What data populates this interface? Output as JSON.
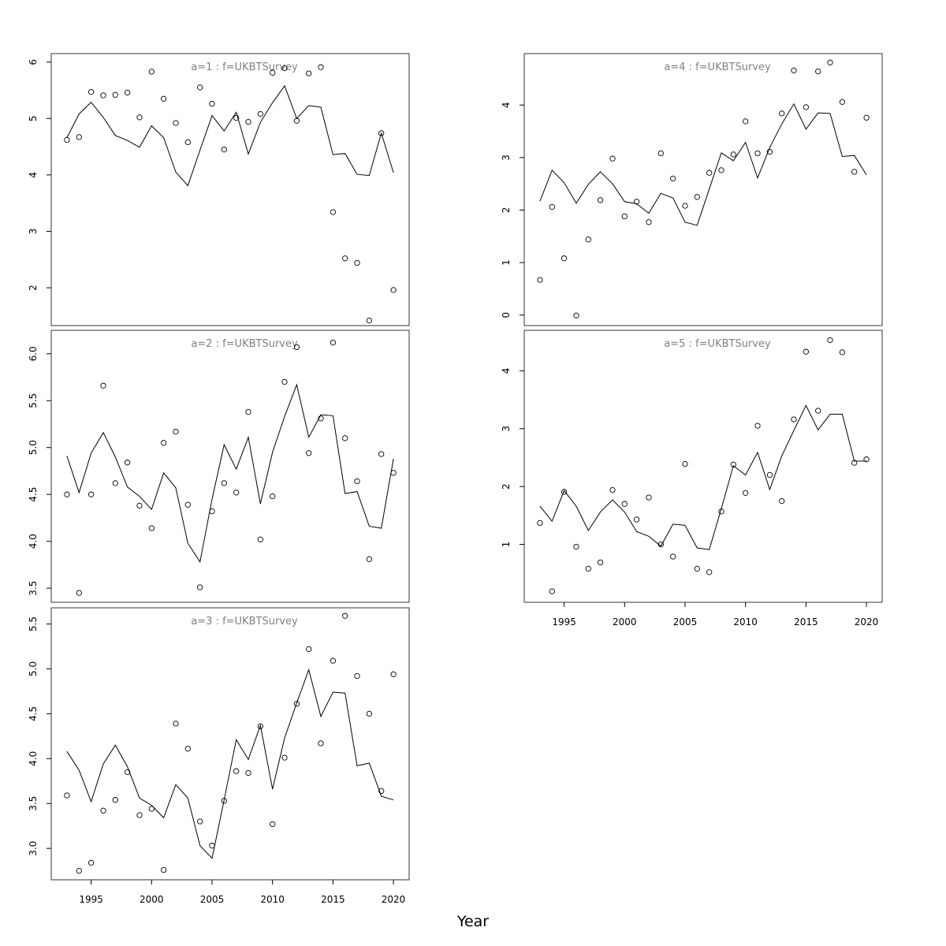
{
  "chart_data": {
    "type": "scatter",
    "xlabel": "Year",
    "x_ticks": [
      1995,
      2000,
      2005,
      2010,
      2015,
      2020
    ],
    "xlim": [
      1991.7,
      2021.3
    ],
    "years": [
      1993,
      1994,
      1995,
      1996,
      1997,
      1998,
      1999,
      2000,
      2001,
      2002,
      2003,
      2004,
      2005,
      2006,
      2007,
      2008,
      2009,
      2010,
      2011,
      2012,
      2013,
      2014,
      2015,
      2016,
      2017,
      2018,
      2019,
      2020
    ],
    "panels": [
      {
        "title": "a=1  :  f=UKBTSurvey",
        "ylim": [
          1.33,
          6.15
        ],
        "y_ticks": [
          2,
          3,
          4,
          5,
          6
        ],
        "y_tick_labels": [
          "2",
          "3",
          "4",
          "5",
          "6"
        ],
        "observed": [
          4.62,
          4.67,
          5.47,
          5.41,
          5.42,
          5.46,
          5.02,
          5.83,
          5.35,
          4.92,
          4.58,
          5.55,
          5.26,
          4.45,
          5.01,
          4.94,
          5.08,
          5.81,
          5.89,
          4.96,
          5.8,
          5.91,
          3.34,
          2.52,
          2.44,
          1.42,
          4.74,
          1.96
        ],
        "fitted": [
          4.66,
          5.08,
          5.29,
          5.02,
          4.7,
          4.61,
          4.49,
          4.87,
          4.66,
          4.05,
          3.81,
          4.44,
          5.05,
          4.78,
          5.11,
          4.37,
          4.93,
          5.28,
          5.58,
          5.0,
          5.23,
          5.2,
          4.36,
          4.38,
          4.01,
          3.99,
          4.74,
          4.04
        ]
      },
      {
        "title": "a=2  :  f=UKBTSurvey",
        "ylim": [
          3.35,
          6.25
        ],
        "y_ticks": [
          3.5,
          4.0,
          4.5,
          5.0,
          5.5,
          6.0
        ],
        "y_tick_labels": [
          "3.5",
          "4.0",
          "4.5",
          "5.0",
          "5.5",
          "6.0"
        ],
        "observed": [
          4.5,
          3.45,
          4.5,
          5.66,
          4.62,
          4.84,
          4.38,
          4.14,
          5.05,
          5.17,
          4.39,
          3.51,
          4.32,
          4.62,
          4.52,
          5.38,
          4.02,
          4.48,
          5.7,
          6.07,
          4.94,
          5.31,
          6.12,
          5.1,
          4.64,
          3.81,
          4.93,
          4.73
        ],
        "fitted": [
          4.91,
          4.52,
          4.94,
          5.16,
          4.9,
          4.58,
          4.48,
          4.34,
          4.73,
          4.57,
          3.98,
          3.78,
          4.45,
          5.03,
          4.77,
          5.11,
          4.4,
          4.95,
          5.33,
          5.67,
          5.11,
          5.35,
          5.34,
          4.51,
          4.53,
          4.16,
          4.14,
          4.88
        ]
      },
      {
        "title": "a=3  :  f=UKBTSurvey",
        "ylim": [
          2.65,
          5.68
        ],
        "y_ticks": [
          3.0,
          3.5,
          4.0,
          4.5,
          5.0,
          5.5
        ],
        "y_tick_labels": [
          "3.0",
          "3.5",
          "4.0",
          "4.5",
          "5.0",
          "5.5"
        ],
        "observed": [
          3.59,
          2.75,
          2.84,
          3.42,
          3.54,
          3.85,
          3.37,
          3.44,
          2.76,
          4.39,
          4.11,
          3.3,
          3.03,
          3.53,
          3.86,
          3.84,
          4.36,
          3.27,
          4.01,
          4.61,
          5.22,
          4.17,
          5.09,
          5.59,
          4.92,
          4.5,
          3.64,
          4.94
        ],
        "fitted": [
          4.08,
          3.87,
          3.52,
          3.94,
          4.15,
          3.91,
          3.56,
          3.48,
          3.34,
          3.71,
          3.56,
          3.03,
          2.89,
          3.54,
          4.21,
          3.99,
          4.37,
          3.66,
          4.23,
          4.62,
          4.99,
          4.47,
          4.74,
          4.73,
          3.92,
          3.95,
          3.58,
          3.54
        ]
      },
      {
        "title": "a=4  :  f=UKBTSurvey",
        "ylim": [
          -0.2,
          4.98
        ],
        "y_ticks": [
          0,
          1,
          2,
          3,
          4
        ],
        "y_tick_labels": [
          "0",
          "1",
          "2",
          "3",
          "4"
        ],
        "observed": [
          0.67,
          2.06,
          1.08,
          -0.01,
          1.44,
          2.19,
          2.98,
          1.88,
          2.16,
          1.77,
          3.08,
          2.6,
          2.08,
          2.25,
          2.71,
          2.76,
          3.06,
          3.69,
          3.08,
          3.11,
          3.84,
          4.66,
          3.96,
          4.64,
          4.81,
          4.06,
          2.73,
          3.76
        ],
        "fitted": [
          2.17,
          2.76,
          2.52,
          2.13,
          2.49,
          2.73,
          2.5,
          2.16,
          2.12,
          1.94,
          2.32,
          2.23,
          1.77,
          1.71,
          2.4,
          3.09,
          2.94,
          3.29,
          2.61,
          3.19,
          3.64,
          4.02,
          3.54,
          3.85,
          3.84,
          3.02,
          3.04,
          2.67
        ]
      },
      {
        "title": "a=5  :  f=UKBTSurvey",
        "ylim": [
          0.0,
          4.7
        ],
        "y_ticks": [
          1,
          2,
          3,
          4
        ],
        "y_tick_labels": [
          "1",
          "2",
          "3",
          "4"
        ],
        "observed": [
          1.37,
          0.19,
          1.91,
          0.96,
          0.58,
          0.69,
          1.94,
          1.7,
          1.43,
          1.81,
          1.0,
          0.79,
          2.39,
          0.58,
          0.52,
          1.57,
          2.38,
          1.89,
          3.05,
          2.2,
          1.75,
          3.16,
          4.33,
          3.31,
          4.53,
          4.32,
          2.41,
          2.47
        ],
        "fitted": [
          1.66,
          1.4,
          1.93,
          1.66,
          1.24,
          1.56,
          1.77,
          1.56,
          1.22,
          1.14,
          0.97,
          1.35,
          1.33,
          0.94,
          0.91,
          1.62,
          2.36,
          2.2,
          2.59,
          1.95,
          2.53,
          2.97,
          3.4,
          2.98,
          3.25,
          3.25,
          2.44,
          2.44
        ]
      }
    ]
  }
}
